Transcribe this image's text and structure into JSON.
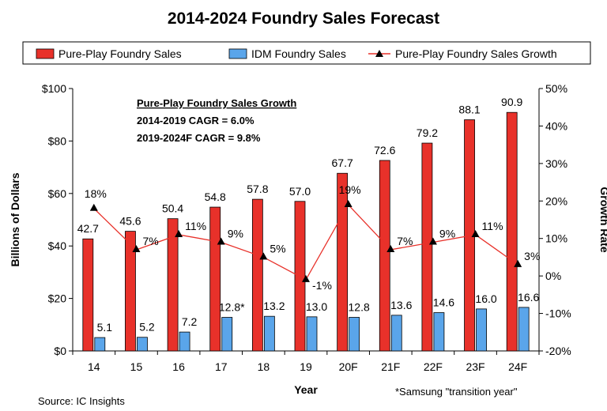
{
  "chart_data": {
    "type": "bar",
    "title": "2014-2024 Foundry Sales Forecast",
    "xlabel": "Year",
    "ylabel": "Billions of Dollars",
    "y2label": "Growth Rate",
    "categories": [
      "14",
      "15",
      "16",
      "17",
      "18",
      "19",
      "20F",
      "21F",
      "22F",
      "23F",
      "24F"
    ],
    "ylim": [
      0,
      100
    ],
    "y2lim": [
      -20,
      50
    ],
    "yticks": [
      "$0",
      "$20",
      "$40",
      "$60",
      "$80",
      "$100"
    ],
    "y2ticks": [
      "-20%",
      "-10%",
      "0%",
      "10%",
      "20%",
      "30%",
      "40%",
      "50%"
    ],
    "legend_position": "top",
    "series": [
      {
        "name": "Pure-Play Foundry Sales",
        "kind": "bar",
        "axis": "left",
        "color": "#e8312a",
        "values": [
          42.7,
          45.6,
          50.4,
          54.8,
          57.8,
          57.0,
          67.7,
          72.6,
          79.2,
          88.1,
          90.9
        ],
        "labels": [
          "42.7",
          "45.6",
          "50.4",
          "54.8",
          "57.8",
          "57.0",
          "67.7",
          "72.6",
          "79.2",
          "88.1",
          "90.9"
        ]
      },
      {
        "name": "IDM Foundry Sales",
        "kind": "bar",
        "axis": "left",
        "color": "#5aa5ea",
        "values": [
          5.1,
          5.2,
          7.2,
          12.8,
          13.2,
          13.0,
          12.8,
          13.6,
          14.6,
          16.0,
          16.6
        ],
        "labels": [
          "5.1",
          "5.2",
          "7.2",
          "12.8*",
          "13.2",
          "13.0",
          "12.8",
          "13.6",
          "14.6",
          "16.0",
          "16.6"
        ]
      },
      {
        "name": "Pure-Play Foundry Sales Growth",
        "kind": "line",
        "axis": "right",
        "color": "#e8312a",
        "values": [
          18,
          7,
          11,
          9,
          5,
          -1,
          19,
          7,
          9,
          11,
          3
        ],
        "labels": [
          "18%",
          "7%",
          "11%",
          "9%",
          "5%",
          "-1%",
          "19%",
          "7%",
          "9%",
          "11%",
          "3%"
        ]
      }
    ],
    "annotation": {
      "heading": "Pure-Play Foundry Sales Growth",
      "lines": [
        "2014-2019 CAGR = 6.0%",
        "2019-2024F CAGR = 9.8%"
      ]
    },
    "footnote": "*Samsung \"transition year\"",
    "source": "Source: IC Insights",
    "grid": false
  }
}
